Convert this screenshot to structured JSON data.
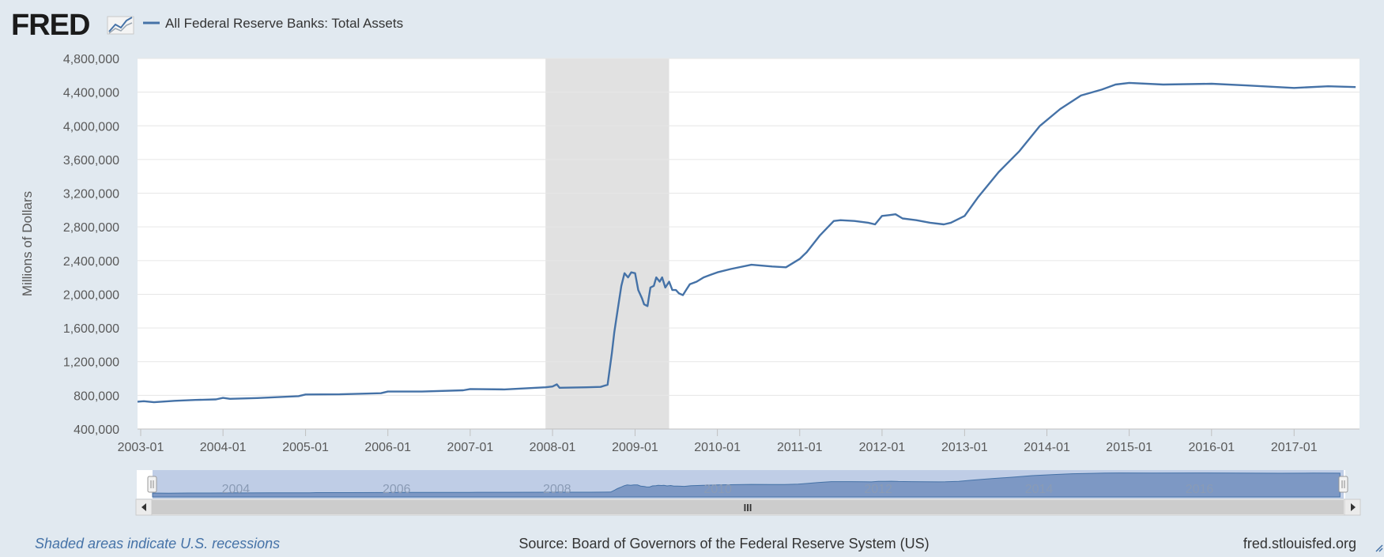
{
  "header": {
    "logo_text": "FRED",
    "legend_label": "All Federal Reserve Banks: Total Assets"
  },
  "footer": {
    "recession_note": "Shaded areas indicate U.S. recessions",
    "source": "Source: Board of Governors of the Federal Reserve System (US)",
    "site": "fred.stlouisfed.org"
  },
  "navigator": {
    "year_labels": [
      "2004",
      "2006",
      "2008",
      "2010",
      "2012",
      "2014",
      "2016"
    ],
    "scroll_grip": "III"
  },
  "colors": {
    "background": "#e1e9f0",
    "plot_background": "#ffffff",
    "series": "#4572a7",
    "recession": "#e1e1e1",
    "grid": "#e6e6e6",
    "text": "#595959",
    "footer_link": "#4572a7"
  },
  "chart_data": {
    "type": "line",
    "title": "",
    "xlabel": "",
    "ylabel": "Millions of Dollars",
    "xlim": [
      "2002-12-18",
      "2017-10-18"
    ],
    "ylim": [
      400000,
      4800000
    ],
    "y_ticks": [
      400000,
      800000,
      1200000,
      1600000,
      2000000,
      2400000,
      2800000,
      3200000,
      3600000,
      4000000,
      4400000,
      4800000
    ],
    "y_tick_labels": [
      "400,000",
      "800,000",
      "1,200,000",
      "1,600,000",
      "2,000,000",
      "2,400,000",
      "2,800,000",
      "3,200,000",
      "3,600,000",
      "4,000,000",
      "4,400,000",
      "4,800,000"
    ],
    "x_ticks": [
      "2003-01",
      "2004-01",
      "2005-01",
      "2006-01",
      "2007-01",
      "2008-01",
      "2009-01",
      "2010-01",
      "2011-01",
      "2012-01",
      "2013-01",
      "2014-01",
      "2015-01",
      "2016-01",
      "2017-01"
    ],
    "grid": true,
    "recession_shading": [
      {
        "start": "2007-12",
        "end": "2009-06"
      }
    ],
    "series": [
      {
        "name": "All Federal Reserve Banks: Total Assets",
        "color": "#4572a7",
        "points": [
          [
            "2002-12-18",
            725000
          ],
          [
            "2003-01-15",
            730000
          ],
          [
            "2003-03-01",
            718000
          ],
          [
            "2003-06-01",
            735000
          ],
          [
            "2003-09-01",
            745000
          ],
          [
            "2003-12-01",
            752000
          ],
          [
            "2004-01-01",
            770000
          ],
          [
            "2004-02-01",
            758000
          ],
          [
            "2004-06-01",
            768000
          ],
          [
            "2004-12-01",
            790000
          ],
          [
            "2005-01-01",
            810000
          ],
          [
            "2005-06-01",
            812000
          ],
          [
            "2005-12-01",
            825000
          ],
          [
            "2006-01-01",
            845000
          ],
          [
            "2006-06-01",
            845000
          ],
          [
            "2006-12-01",
            860000
          ],
          [
            "2007-01-01",
            875000
          ],
          [
            "2007-06-01",
            870000
          ],
          [
            "2007-12-01",
            895000
          ],
          [
            "2008-01-01",
            905000
          ],
          [
            "2008-01-20",
            930000
          ],
          [
            "2008-02-01",
            890000
          ],
          [
            "2008-06-01",
            895000
          ],
          [
            "2008-08-01",
            900000
          ],
          [
            "2008-09-01",
            925000
          ],
          [
            "2008-09-20",
            1300000
          ],
          [
            "2008-10-01",
            1550000
          ],
          [
            "2008-10-15",
            1800000
          ],
          [
            "2008-11-01",
            2100000
          ],
          [
            "2008-11-15",
            2250000
          ],
          [
            "2008-12-01",
            2200000
          ],
          [
            "2008-12-15",
            2260000
          ],
          [
            "2009-01-01",
            2250000
          ],
          [
            "2009-01-15",
            2050000
          ],
          [
            "2009-02-01",
            1950000
          ],
          [
            "2009-02-10",
            1880000
          ],
          [
            "2009-02-25",
            1860000
          ],
          [
            "2009-03-10",
            2080000
          ],
          [
            "2009-03-25",
            2100000
          ],
          [
            "2009-04-05",
            2200000
          ],
          [
            "2009-04-20",
            2150000
          ],
          [
            "2009-05-01",
            2200000
          ],
          [
            "2009-05-15",
            2080000
          ],
          [
            "2009-06-01",
            2150000
          ],
          [
            "2009-06-15",
            2050000
          ],
          [
            "2009-07-01",
            2050000
          ],
          [
            "2009-07-15",
            2010000
          ],
          [
            "2009-08-01",
            1990000
          ],
          [
            "2009-08-15",
            2050000
          ],
          [
            "2009-09-01",
            2120000
          ],
          [
            "2009-10-01",
            2150000
          ],
          [
            "2009-11-01",
            2200000
          ],
          [
            "2009-12-01",
            2230000
          ],
          [
            "2010-01-01",
            2260000
          ],
          [
            "2010-03-01",
            2300000
          ],
          [
            "2010-06-01",
            2350000
          ],
          [
            "2010-09-01",
            2330000
          ],
          [
            "2010-11-01",
            2320000
          ],
          [
            "2011-01-01",
            2420000
          ],
          [
            "2011-02-01",
            2500000
          ],
          [
            "2011-04-01",
            2700000
          ],
          [
            "2011-06-01",
            2870000
          ],
          [
            "2011-07-01",
            2880000
          ],
          [
            "2011-09-01",
            2870000
          ],
          [
            "2011-11-01",
            2850000
          ],
          [
            "2011-12-01",
            2830000
          ],
          [
            "2012-01-01",
            2930000
          ],
          [
            "2012-02-01",
            2940000
          ],
          [
            "2012-03-01",
            2950000
          ],
          [
            "2012-04-01",
            2900000
          ],
          [
            "2012-06-01",
            2880000
          ],
          [
            "2012-08-01",
            2850000
          ],
          [
            "2012-10-01",
            2830000
          ],
          [
            "2012-11-01",
            2850000
          ],
          [
            "2013-01-01",
            2930000
          ],
          [
            "2013-03-01",
            3150000
          ],
          [
            "2013-06-01",
            3450000
          ],
          [
            "2013-09-01",
            3700000
          ],
          [
            "2013-12-01",
            4000000
          ],
          [
            "2014-03-01",
            4200000
          ],
          [
            "2014-06-01",
            4360000
          ],
          [
            "2014-09-01",
            4430000
          ],
          [
            "2014-11-01",
            4490000
          ],
          [
            "2015-01-01",
            4510000
          ],
          [
            "2015-06-01",
            4490000
          ],
          [
            "2016-01-01",
            4500000
          ],
          [
            "2016-06-01",
            4480000
          ],
          [
            "2017-01-01",
            4450000
          ],
          [
            "2017-06-01",
            4470000
          ],
          [
            "2017-10-01",
            4460000
          ]
        ]
      }
    ]
  }
}
